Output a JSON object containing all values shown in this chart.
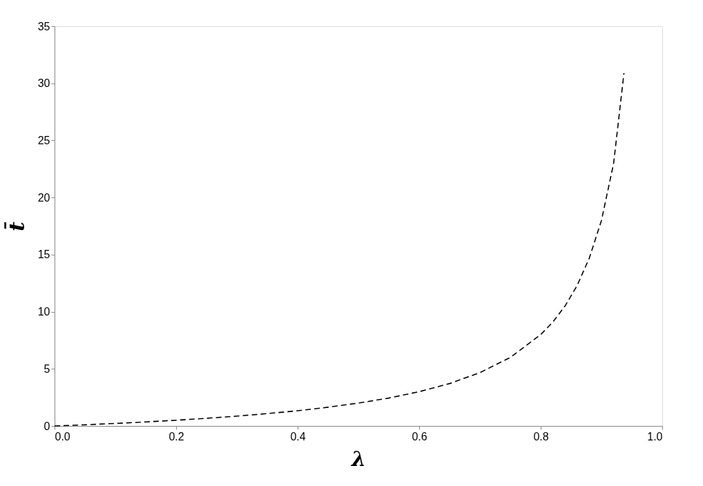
{
  "chart_data": {
    "type": "line",
    "xlabel": "λ",
    "ylabel": "t̄",
    "x": [
      0,
      0.05,
      0.1,
      0.15,
      0.2,
      0.25,
      0.3,
      0.35,
      0.4,
      0.45,
      0.5,
      0.55,
      0.6,
      0.65,
      0.7,
      0.75,
      0.8,
      0.82,
      0.84,
      0.86,
      0.88,
      0.9,
      0.92,
      0.937
    ],
    "series": [
      {
        "color": "#000000",
        "values": [
          0,
          0.1,
          0.22,
          0.35,
          0.5,
          0.67,
          0.86,
          1.08,
          1.33,
          1.64,
          2.0,
          2.44,
          3.0,
          3.71,
          4.67,
          6.0,
          8.0,
          9.1,
          10.5,
          12.3,
          14.7,
          18.0,
          23.0,
          30.9
        ]
      }
    ],
    "xlim": [
      0,
      1
    ],
    "xticks": [
      {
        "value": 0,
        "label": "0.0"
      },
      0.2,
      0.4,
      0.6,
      0.8,
      {
        "value": 1,
        "label": "1.0"
      }
    ],
    "ylim": [
      0,
      35
    ],
    "yticks": [
      0,
      5,
      10,
      15,
      20,
      25,
      30,
      35
    ],
    "line_style": "dashed",
    "grid": false
  }
}
